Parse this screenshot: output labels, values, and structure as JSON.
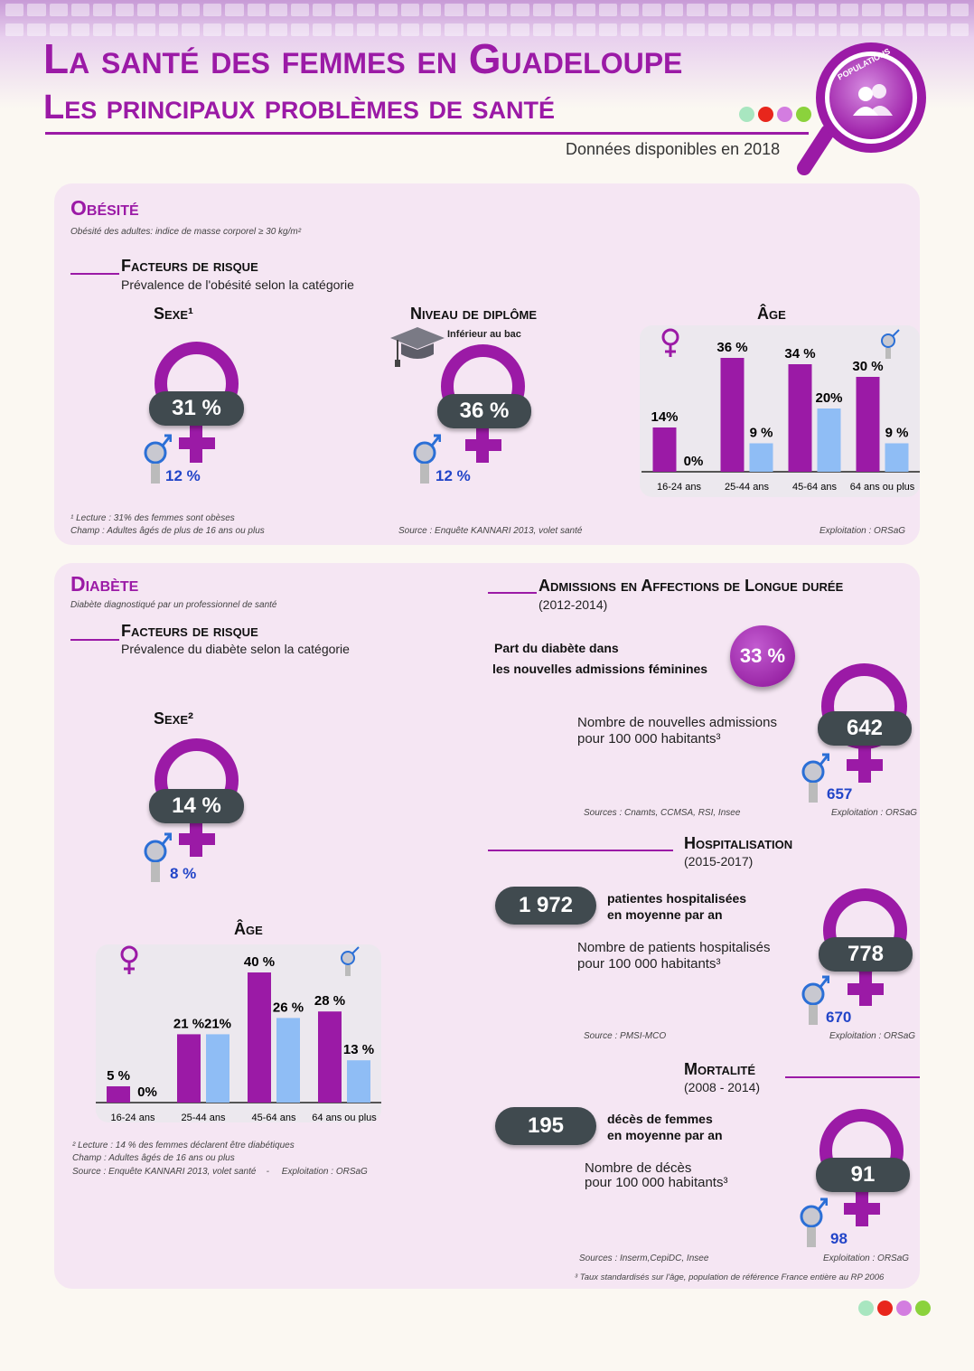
{
  "header": {
    "title": "La santé des femmes en Guadeloupe",
    "subtitle": "Les principaux problèmes de santé",
    "data_year": "Données disponibles en 2018",
    "badge": "POPULATIONS",
    "dot_colors": [
      "#a8e6c0",
      "#e8261c",
      "#d37de0",
      "#8bd23c"
    ]
  },
  "obesite": {
    "title": "Obésité",
    "definition": "Obésité des adultes: indice de masse corporel ≥ 30 kg/m²",
    "risk_title": "Facteurs de risque",
    "risk_sub": "Prévalence de l'obésité selon la catégorie",
    "sexe": {
      "heading": "Sexe¹",
      "women": "31 %",
      "men": "12 %"
    },
    "diplome": {
      "heading": "Niveau de diplôme",
      "label": "Inférieur au bac",
      "women": "36 %",
      "men": "12 %"
    },
    "age_heading": "Âge",
    "note1": "¹ Lecture : 31% des femmes sont obèses",
    "note2": "Champ : Adultes âgés de plus de 16 ans ou plus",
    "source": "Source : Enquête KANNARI 2013, volet santé",
    "exploitation": "Exploitation : ORSaG"
  },
  "diabete": {
    "title": "Diabète",
    "definition": "Diabète diagnostiqué par un professionnel de santé",
    "risk_title": "Facteurs de risque",
    "risk_sub": "Prévalence du diabète selon la catégorie",
    "sexe": {
      "heading": "Sexe²",
      "women": "14 %",
      "men": "8 %"
    },
    "age_heading": "Âge",
    "note1": "² Lecture : 14 % des femmes déclarent être diabétiques",
    "note2": "Champ : Adultes âgés de 16 ans ou plus",
    "note3": "Source : Enquête KANNARI 2013, volet santé    -     Exploitation : ORSaG"
  },
  "ald": {
    "title": "Admissions en Affections de Longue durée",
    "period": "(2012-2014)",
    "share_label_1": "Part du diabète dans",
    "share_label_2": "les nouvelles admissions féminines",
    "share_value": "33 %",
    "rate_label_1": "Nombre de nouvelles admissions",
    "rate_label_2": "pour 100 000 habitants³",
    "women": "642",
    "men": "657",
    "sources": "Sources : Cnamts, CCMSA, RSI, Insee",
    "exploitation": "Exploitation : ORSaG"
  },
  "hosp": {
    "title": "Hospitalisation",
    "period": "(2015-2017)",
    "count": "1 972",
    "count_label_1": "patientes hospitalisées",
    "count_label_2": "en moyenne par an",
    "rate_label_1": "Nombre de patients hospitalisés",
    "rate_label_2": "pour 100 000 habitants³",
    "women": "778",
    "men": "670",
    "source": "Source : PMSI-MCO",
    "exploitation": "Exploitation : ORSaG"
  },
  "mort": {
    "title": "Mortalité",
    "period": "(2008 - 2014)",
    "count": "195",
    "count_label_1": "décès de femmes",
    "count_label_2": "en moyenne par an",
    "rate_label_1": "Nombre de décès",
    "rate_label_2": "pour 100 000 habitants³",
    "women": "91",
    "men": "98",
    "sources": "Sources : Inserm,CepiDC, Insee",
    "exploitation": "Exploitation : ORSaG",
    "footnote": "³ Taux standardisés sur l'âge, population de référence France entière au RP 2006"
  },
  "chart_data": [
    {
      "type": "bar",
      "id": "obesite-age",
      "title": "Âge",
      "categories": [
        "16-24 ans",
        "25-44 ans",
        "45-64 ans",
        "64 ans ou plus"
      ],
      "series": [
        {
          "values": [
            14,
            36,
            34,
            30
          ],
          "labels": [
            "14%",
            "36 %",
            "34 %",
            "30 %"
          ],
          "color": "#9b1aa6"
        },
        {
          "values": [
            0,
            9,
            20,
            9
          ],
          "labels": [
            "0%",
            "9 %",
            "20%",
            "9 %"
          ],
          "color": "#8fbdf5"
        }
      ]
    },
    {
      "type": "bar",
      "id": "diabete-age",
      "title": "Âge",
      "categories": [
        "16-24 ans",
        "25-44 ans",
        "45-64 ans",
        "64 ans ou plus"
      ],
      "series": [
        {
          "values": [
            5,
            21,
            40,
            28
          ],
          "labels": [
            "5 %",
            "21 %",
            "40 %",
            "28 %"
          ],
          "color": "#9b1aa6"
        },
        {
          "values": [
            0,
            21,
            26,
            13
          ],
          "labels": [
            "0%",
            "21%",
            "26 %",
            "13 %"
          ],
          "color": "#8fbdf5"
        }
      ]
    }
  ]
}
